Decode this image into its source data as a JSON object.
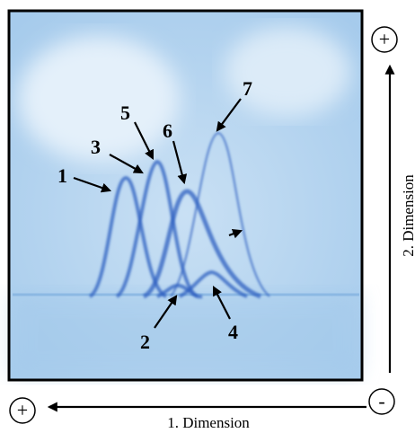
{
  "spots": {
    "s1": "1",
    "s2": "2",
    "s3": "3",
    "s4": "4",
    "s5": "5",
    "s6": "6",
    "s7": "7"
  },
  "poles": {
    "top": "+",
    "left": "+",
    "right": "-"
  },
  "axes": {
    "first": "1. Dimension",
    "second": "2. Dimension"
  }
}
